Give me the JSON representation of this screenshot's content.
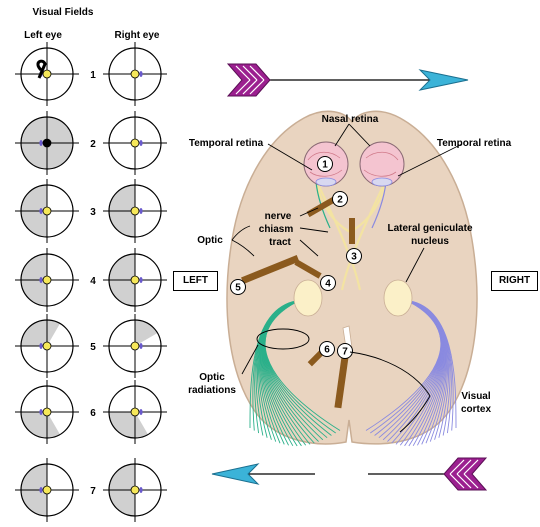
{
  "header": {
    "title": "Visual Fields",
    "left_eye": "Left eye",
    "right_eye": "Right eye"
  },
  "rows": [
    {
      "number": "1"
    },
    {
      "number": "2"
    },
    {
      "number": "3"
    },
    {
      "number": "4"
    },
    {
      "number": "5"
    },
    {
      "number": "6"
    },
    {
      "number": "7"
    }
  ],
  "labels": {
    "nasal_retina": "Nasal retina",
    "temporal_retina_left": "Temporal retina",
    "temporal_retina_right": "Temporal retina",
    "nerve": "nerve",
    "chiasm": "chiasm",
    "tract": "tract",
    "optic": "Optic",
    "lgn_line1": "Lateral geniculate",
    "lgn_line2": "nucleus",
    "optic_radiations_1": "Optic",
    "optic_radiations_2": "radiations",
    "visual_cortex_1": "Visual",
    "visual_cortex_2": "cortex",
    "left_box": "LEFT",
    "right_box": "RIGHT"
  },
  "lesions": [
    "1",
    "2",
    "3",
    "4",
    "5",
    "6",
    "7"
  ],
  "colors": {
    "brain": "#e9d4c0",
    "brain_stroke": "#c9ae95",
    "left_fibers": "#2bb08a",
    "right_fibers": "#8a8ae0",
    "lesion_bar": "#8b5a1e",
    "field_shade": "#d0d0d0",
    "dot": "#f6e85a",
    "arrow_purple": "#9b1f8f",
    "arrow_cyan": "#3bb3d8",
    "eye": "#f4c4d0"
  }
}
